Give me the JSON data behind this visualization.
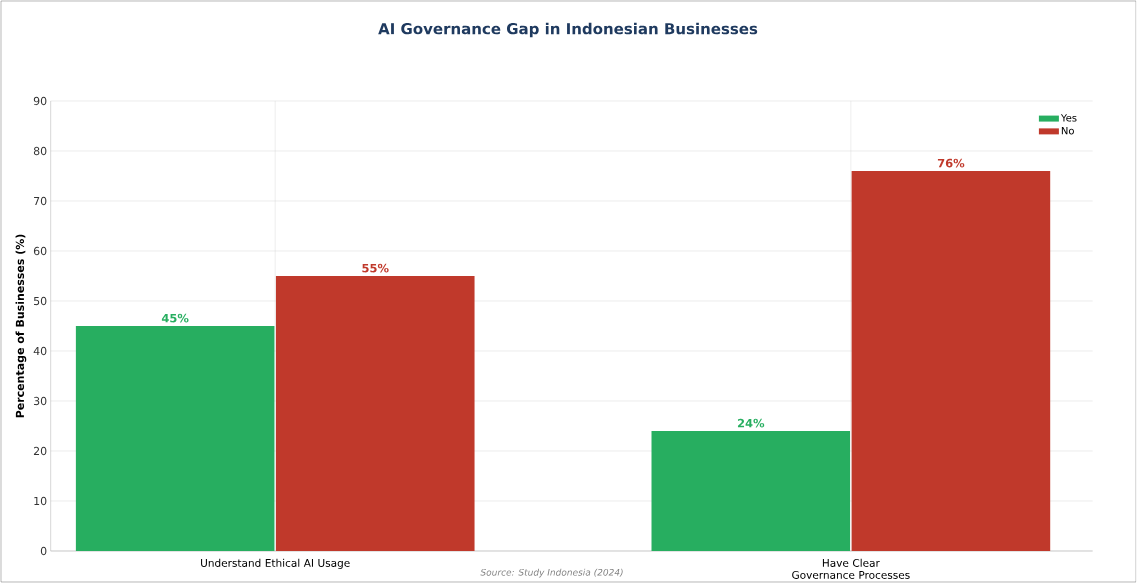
{
  "chart_data": {
    "type": "bar",
    "title": "AI Governance Gap in Indonesian Businesses",
    "ylabel": "Percentage of Businesses (%)",
    "categories": [
      "Understand Ethical AI Usage",
      "Have Clear Governance Processes"
    ],
    "series": [
      {
        "name": "Yes",
        "color": "#27ae60",
        "values": [
          45,
          24
        ],
        "value_labels": [
          "45%",
          "24%"
        ]
      },
      {
        "name": "No",
        "color": "#c0392b",
        "values": [
          55,
          76
        ],
        "value_labels": [
          "55%",
          "76%"
        ]
      }
    ],
    "ylim": [
      0,
      90
    ],
    "yticks": [
      0,
      10,
      20,
      30,
      40,
      50,
      60,
      70,
      80,
      90
    ],
    "grid": true,
    "legend": "top right",
    "annotations": [
      "Source: Study Indonesia (2024)"
    ]
  }
}
